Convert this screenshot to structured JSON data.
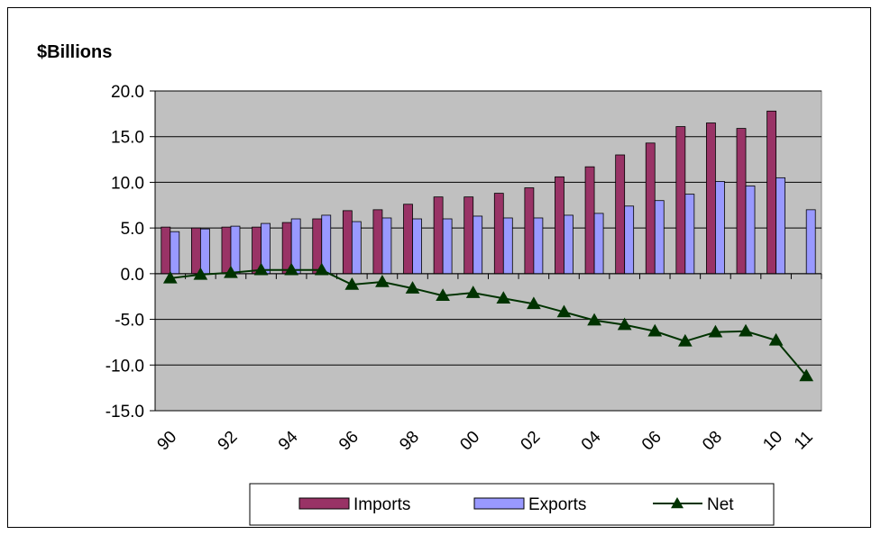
{
  "chart_data": {
    "type": "bar",
    "ylabel": "$Billions",
    "ylim": [
      -15,
      20
    ],
    "yticks": [
      "20.0",
      "15.0",
      "10.0",
      "5.0",
      "0.0",
      "-5.0",
      "-10.0",
      "-15.0"
    ],
    "categories": [
      "90",
      "91",
      "92",
      "93",
      "94",
      "95",
      "96",
      "97",
      "98",
      "99",
      "00",
      "01",
      "02",
      "03",
      "04",
      "05",
      "06",
      "07",
      "08",
      "09",
      "10",
      "11"
    ],
    "xtick_labels": [
      "90",
      "92",
      "94",
      "96",
      "98",
      "00",
      "02",
      "04",
      "06",
      "08",
      "10",
      "11"
    ],
    "grid": true,
    "legend_position": "bottom",
    "series": [
      {
        "name": "Imports",
        "kind": "bar",
        "color": "#993366",
        "values": [
          5.1,
          5.0,
          5.1,
          5.1,
          5.6,
          6.0,
          6.9,
          7.0,
          7.6,
          8.4,
          8.4,
          8.8,
          9.4,
          10.6,
          11.7,
          13.0,
          14.3,
          16.1,
          16.5,
          15.9,
          17.8,
          null
        ]
      },
      {
        "name": "Exports",
        "kind": "bar",
        "color": "#9999FF",
        "values": [
          4.6,
          4.9,
          5.2,
          5.5,
          6.0,
          6.4,
          5.7,
          6.1,
          6.0,
          6.0,
          6.3,
          6.1,
          6.1,
          6.4,
          6.6,
          7.4,
          8.0,
          8.7,
          10.1,
          9.6,
          10.5,
          7.0
        ]
      },
      {
        "name": "Net",
        "kind": "line",
        "color": "#003300",
        "values": [
          -0.5,
          -0.1,
          0.1,
          0.4,
          0.4,
          0.4,
          -1.2,
          -0.9,
          -1.6,
          -2.4,
          -2.1,
          -2.7,
          -3.3,
          -4.2,
          -5.1,
          -5.6,
          -6.3,
          -7.4,
          -6.4,
          -6.3,
          -7.3,
          -11.2
        ]
      }
    ]
  },
  "colors": {
    "plot_background": "#C0C0C0",
    "gridline": "#000000"
  }
}
